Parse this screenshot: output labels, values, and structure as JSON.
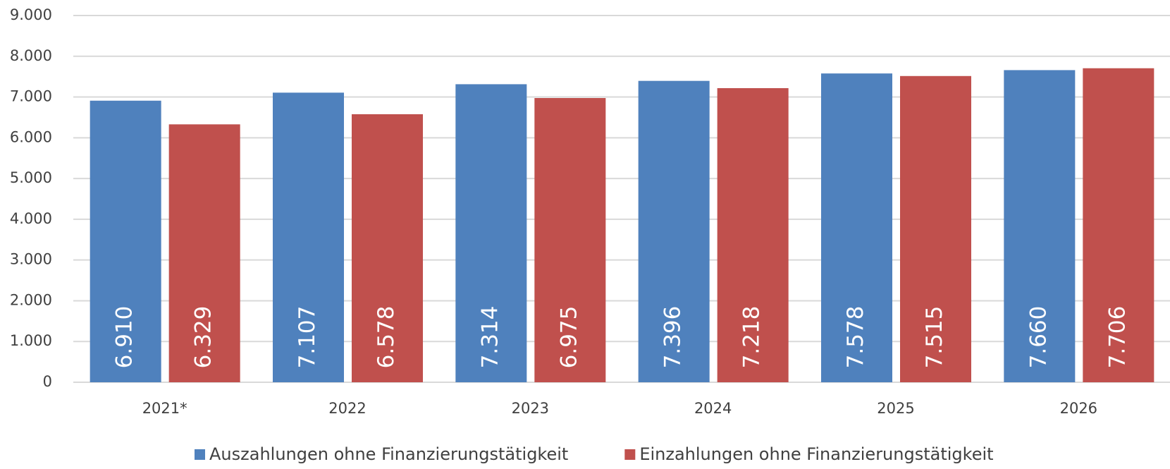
{
  "chart_data": {
    "type": "bar",
    "categories": [
      "2021*",
      "2022",
      "2023",
      "2024",
      "2025",
      "2026"
    ],
    "series": [
      {
        "name": "Auszahlungen ohne Finanzierungstätigkeit",
        "color": "#4f81bd",
        "values": [
          6910,
          7107,
          7314,
          7396,
          7578,
          7660
        ],
        "value_labels": [
          "6.910",
          "7.107",
          "7.314",
          "7.396",
          "7.578",
          "7.660"
        ]
      },
      {
        "name": "Einzahlungen ohne Finanzierungstätigkeit",
        "color": "#c0504d",
        "values": [
          6329,
          6578,
          6975,
          7218,
          7515,
          7706
        ],
        "value_labels": [
          "6.329",
          "6.578",
          "6.975",
          "7.218",
          "7.515",
          "7.706"
        ]
      }
    ],
    "ylim": [
      0,
      9000
    ],
    "yticks": [
      0,
      {
        "value": 1000,
        "label": "1.000"
      },
      {
        "value": 2000,
        "label": "2.000"
      },
      {
        "value": 3000,
        "label": "3.000"
      },
      {
        "value": 4000,
        "label": "4.000"
      },
      {
        "value": 5000,
        "label": "5.000"
      },
      {
        "value": 6000,
        "label": "6.000"
      },
      {
        "value": 7000,
        "label": "7.000"
      },
      {
        "value": 8000,
        "label": "8.000"
      },
      {
        "value": 9000,
        "label": "9.000"
      }
    ],
    "grid": true,
    "legend": "bottom"
  }
}
